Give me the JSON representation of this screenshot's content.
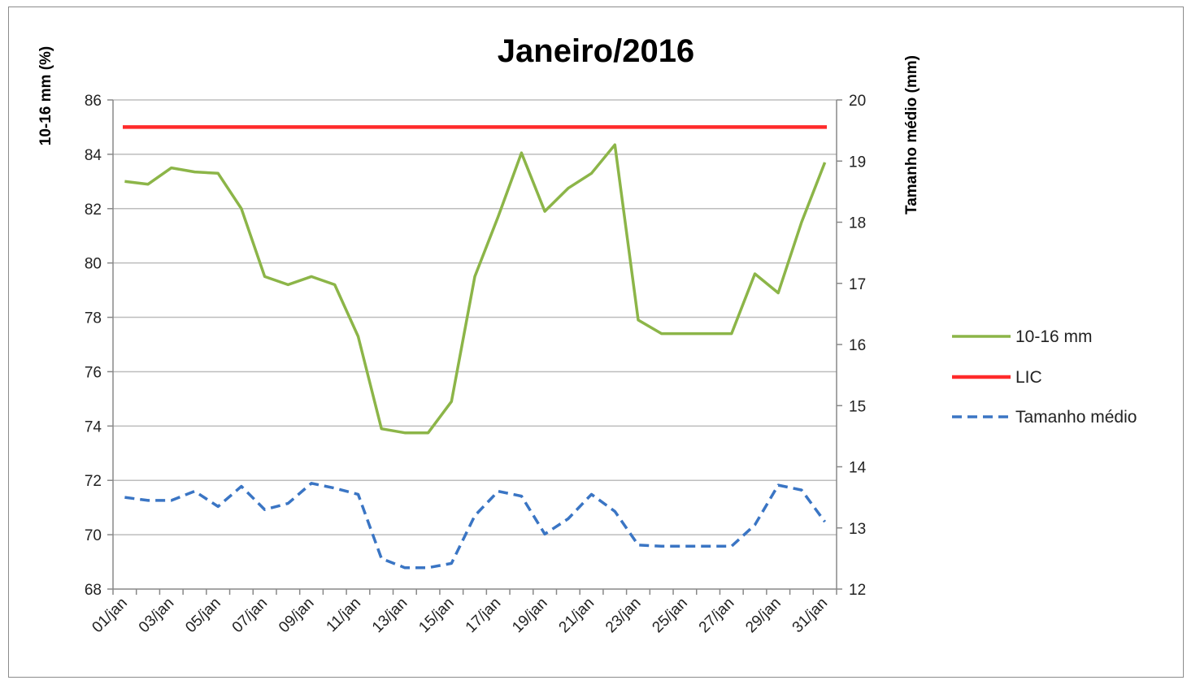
{
  "chart_data": {
    "type": "line",
    "title": "Janeiro/2016",
    "ylabel": "10-16 mm (%)",
    "y2label": "Tamanho médio (mm)",
    "ylim": [
      68,
      86
    ],
    "y2lim": [
      12,
      20
    ],
    "yticks": [
      "68",
      "70",
      "72",
      "74",
      "76",
      "78",
      "80",
      "82",
      "84",
      "86"
    ],
    "y2ticks": [
      "12",
      "13",
      "14",
      "15",
      "16",
      "17",
      "18",
      "19",
      "20"
    ],
    "x": [
      "01/jan",
      "02/jan",
      "03/jan",
      "04/jan",
      "05/jan",
      "06/jan",
      "07/jan",
      "08/jan",
      "09/jan",
      "10/jan",
      "11/jan",
      "12/jan",
      "13/jan",
      "14/jan",
      "15/jan",
      "16/jan",
      "17/jan",
      "18/jan",
      "19/jan",
      "20/jan",
      "21/jan",
      "22/jan",
      "23/jan",
      "24/jan",
      "25/jan",
      "26/jan",
      "27/jan",
      "28/jan",
      "29/jan",
      "30/jan",
      "31/jan"
    ],
    "xticklabels": [
      "01/jan",
      "03/jan",
      "05/jan",
      "07/jan",
      "09/jan",
      "11/jan",
      "13/jan",
      "15/jan",
      "17/jan",
      "19/jan",
      "21/jan",
      "23/jan",
      "25/jan",
      "27/jan",
      "29/jan",
      "31/jan"
    ],
    "grid": true,
    "legend_position": "right",
    "series": [
      {
        "name": "10-16 mm",
        "axis": "left",
        "color": "#8cb548",
        "style": "solid",
        "values": [
          83.0,
          82.9,
          83.5,
          83.35,
          83.3,
          82.0,
          79.5,
          79.2,
          79.5,
          79.2,
          77.3,
          73.9,
          73.75,
          73.75,
          74.9,
          79.5,
          81.7,
          84.05,
          81.9,
          82.75,
          83.3,
          84.35,
          77.9,
          77.4,
          77.4,
          77.4,
          77.4,
          79.6,
          78.9,
          81.5,
          83.7
        ]
      },
      {
        "name": "LIC",
        "axis": "left",
        "color": "#ff2b2b",
        "style": "solid",
        "values": [
          85,
          85,
          85,
          85,
          85,
          85,
          85,
          85,
          85,
          85,
          85,
          85,
          85,
          85,
          85,
          85,
          85,
          85,
          85,
          85,
          85,
          85,
          85,
          85,
          85,
          85,
          85,
          85,
          85,
          85,
          85
        ]
      },
      {
        "name": "Tamanho médio",
        "axis": "right",
        "color": "#3a75c4",
        "style": "dashed",
        "values": [
          13.5,
          13.45,
          13.45,
          13.6,
          13.35,
          13.68,
          13.3,
          13.4,
          13.73,
          13.65,
          13.55,
          12.5,
          12.35,
          12.35,
          12.42,
          13.2,
          13.6,
          13.52,
          12.9,
          13.15,
          13.55,
          13.27,
          12.72,
          12.7,
          12.7,
          12.7,
          12.7,
          13.05,
          13.7,
          13.62,
          13.1
        ]
      }
    ]
  }
}
